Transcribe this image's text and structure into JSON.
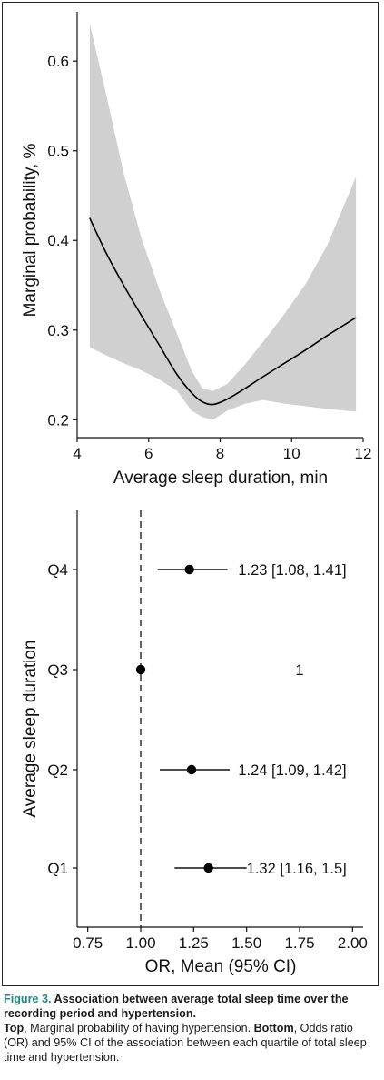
{
  "chart_data": [
    {
      "type": "line",
      "xlabel": "Average sleep duration, min",
      "ylabel": "Marginal probability, %",
      "xlim": [
        4,
        12
      ],
      "ylim": [
        0.18,
        0.655
      ],
      "xticks": [
        "4",
        "6",
        "8",
        "10",
        "12"
      ],
      "yticks": [
        "0.2",
        "0.3",
        "0.4",
        "0.5",
        "0.6"
      ],
      "grid": false,
      "ci_band_color": "#d0d0d0",
      "line_color": "#000000",
      "series": [
        {
          "x": [
            4.35,
            4.8,
            5.3,
            5.8,
            6.3,
            6.8,
            7.2,
            7.5,
            7.8,
            8.2,
            8.7,
            9.2,
            9.8,
            10.4,
            11.0,
            11.8
          ],
          "y": [
            0.425,
            0.387,
            0.35,
            0.316,
            0.283,
            0.25,
            0.23,
            0.22,
            0.217,
            0.223,
            0.235,
            0.248,
            0.263,
            0.278,
            0.294,
            0.314
          ],
          "lower": [
            0.281,
            0.272,
            0.263,
            0.255,
            0.245,
            0.232,
            0.21,
            0.203,
            0.2,
            0.21,
            0.218,
            0.222,
            0.218,
            0.215,
            0.212,
            0.209
          ],
          "upper": [
            0.642,
            0.565,
            0.475,
            0.402,
            0.345,
            0.295,
            0.255,
            0.235,
            0.232,
            0.24,
            0.262,
            0.287,
            0.318,
            0.352,
            0.395,
            0.471
          ]
        }
      ]
    },
    {
      "type": "scatter",
      "xlabel": "OR, Mean (95% CI)",
      "ylabel": "Average sleep duration",
      "xlim": [
        0.7,
        2.05
      ],
      "xticks": [
        "0.75",
        "1.00",
        "1.25",
        "1.50",
        "1.75",
        "2.00"
      ],
      "reference_line": 1.0,
      "grid": false,
      "rows": [
        {
          "label": "Q4",
          "or": 1.23,
          "lo": 1.08,
          "hi": 1.41,
          "text": "1.23 [1.08, 1.41]"
        },
        {
          "label": "Q3",
          "or": 1.0,
          "lo": null,
          "hi": null,
          "text": "1"
        },
        {
          "label": "Q2",
          "or": 1.24,
          "lo": 1.09,
          "hi": 1.42,
          "text": "1.24 [1.09, 1.42]"
        },
        {
          "label": "Q1",
          "or": 1.32,
          "lo": 1.16,
          "hi": 1.5,
          "text": "1.32 [1.16, 1.5]"
        }
      ]
    }
  ],
  "caption": {
    "figure_label": "Figure 3.",
    "title": " Association between average total sleep time over the recording period and hypertension.",
    "top_label": "Top",
    "top_text": ", Marginal probability of having hypertension. ",
    "bottom_label": "Bottom",
    "bottom_text": ", Odds ratio (OR) and 95% CI of the association between each quartile of total sleep time and hypertension."
  }
}
